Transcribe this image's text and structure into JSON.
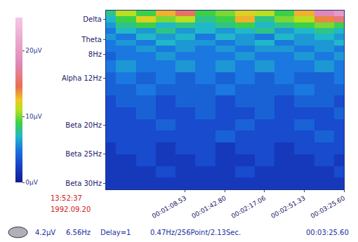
{
  "chart_data": {
    "type": "heatmap",
    "x": [
      0,
      17.13,
      34.27,
      51.4,
      68.53,
      85.67,
      102.8,
      119.93,
      137.06,
      154.2,
      171.33,
      188.47,
      205.6
    ],
    "y": [
      1,
      2,
      3,
      4,
      5,
      6,
      7,
      8,
      10,
      12,
      14,
      16,
      18,
      20,
      22,
      24,
      26,
      28,
      30
    ],
    "cells": [
      [
        8,
        11,
        9,
        13,
        15,
        9,
        10,
        12,
        11,
        9,
        13,
        18,
        20
      ],
      [
        7,
        9,
        12,
        10,
        11,
        8,
        9,
        13,
        8,
        10,
        11,
        14,
        16
      ],
      [
        6,
        8,
        9,
        7,
        8,
        7,
        8,
        9,
        7,
        8,
        9,
        10,
        9
      ],
      [
        5,
        7,
        6,
        8,
        6,
        7,
        6,
        7,
        8,
        6,
        7,
        8,
        7
      ],
      [
        6,
        5,
        7,
        6,
        7,
        5,
        7,
        6,
        5,
        7,
        6,
        7,
        6
      ],
      [
        5,
        6,
        5,
        7,
        6,
        6,
        5,
        6,
        7,
        5,
        6,
        6,
        7
      ],
      [
        5,
        5,
        6,
        5,
        6,
        5,
        6,
        5,
        6,
        6,
        5,
        6,
        5
      ],
      [
        4,
        5,
        5,
        6,
        5,
        5,
        5,
        6,
        5,
        5,
        6,
        5,
        6
      ],
      [
        5,
        6,
        5,
        5,
        6,
        5,
        6,
        5,
        6,
        5,
        5,
        6,
        5
      ],
      [
        4,
        5,
        4,
        5,
        4,
        5,
        4,
        5,
        4,
        5,
        4,
        4,
        5
      ],
      [
        4,
        4,
        5,
        4,
        4,
        4,
        5,
        4,
        4,
        4,
        5,
        4,
        4
      ],
      [
        3,
        4,
        4,
        3,
        4,
        4,
        3,
        4,
        4,
        3,
        4,
        4,
        3
      ],
      [
        3,
        3,
        4,
        3,
        3,
        4,
        3,
        3,
        4,
        3,
        3,
        3,
        4
      ],
      [
        3,
        3,
        3,
        4,
        3,
        3,
        3,
        4,
        3,
        3,
        4,
        3,
        3
      ],
      [
        3,
        3,
        3,
        3,
        3,
        3,
        4,
        3,
        3,
        3,
        3,
        4,
        3
      ],
      [
        2,
        3,
        3,
        2,
        3,
        3,
        2,
        3,
        3,
        2,
        3,
        3,
        3
      ],
      [
        2,
        2,
        3,
        2,
        2,
        3,
        2,
        2,
        3,
        2,
        2,
        3,
        2
      ],
      [
        2,
        2,
        2,
        3,
        2,
        2,
        2,
        3,
        2,
        2,
        2,
        2,
        3
      ],
      [
        2,
        2,
        2,
        2,
        2,
        2,
        2,
        2,
        2,
        2,
        2,
        2,
        2
      ]
    ],
    "xlim": [
      0,
      205.6
    ],
    "xticks": [
      {
        "value": 68.53,
        "label": "00:01:08.53"
      },
      {
        "value": 102.8,
        "label": "00:01:42.80"
      },
      {
        "value": 137.06,
        "label": "00:02:17.06"
      },
      {
        "value": 171.33,
        "label": "00:02:51.33"
      },
      {
        "value": 205.6,
        "label": "00:03:25.60"
      }
    ],
    "ylim": [
      0.5,
      31
    ],
    "yticks": [
      {
        "value": 2,
        "label": "Delta"
      },
      {
        "value": 5.5,
        "label": "Theta"
      },
      {
        "value": 8,
        "label": "8Hz"
      },
      {
        "value": 12,
        "label": "Alpha 12Hz"
      },
      {
        "value": 20,
        "label": "Beta 20Hz"
      },
      {
        "value": 25,
        "label": "Beta 25Hz"
      },
      {
        "value": 30,
        "label": "Beta 30Hz"
      }
    ],
    "colorbar": {
      "range": [
        0,
        25
      ],
      "ticks": [
        {
          "value": 0,
          "label": "0µV"
        },
        {
          "value": 10,
          "label": "10µV"
        },
        {
          "value": 20,
          "label": "20µV"
        }
      ]
    },
    "annotations": [
      "13:52:37",
      "1992.09.20",
      "4.2µV",
      "6.56Hz",
      "Delay=1",
      "0.47Hz/256Point/2.13Sec.",
      "00:03:25.60"
    ]
  }
}
